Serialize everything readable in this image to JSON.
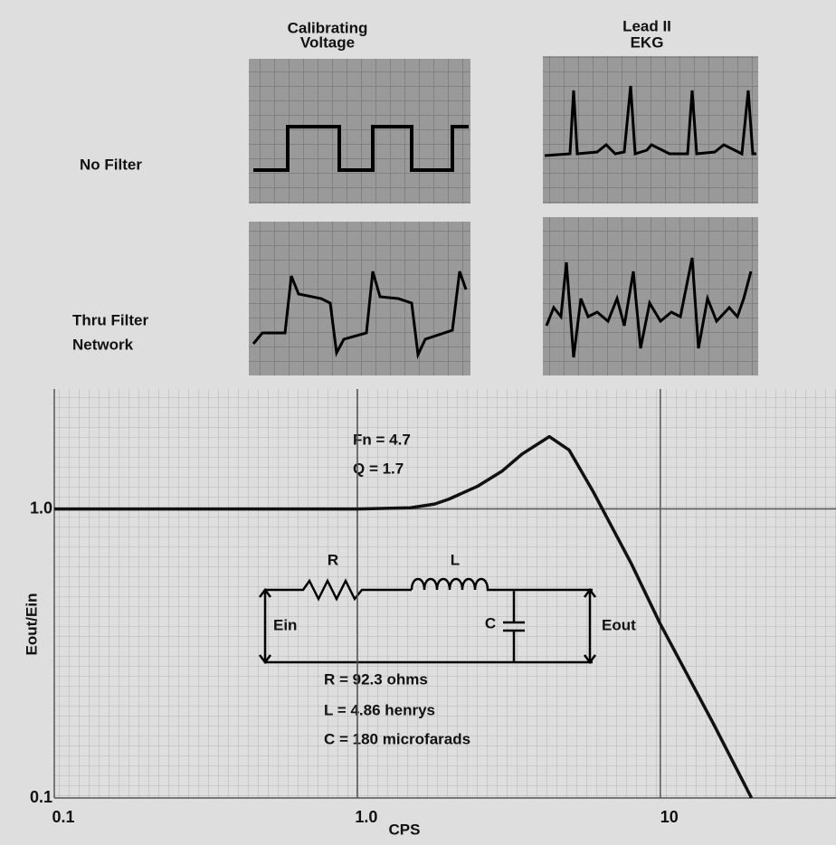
{
  "panels": {
    "columns": [
      [
        "Calibrating",
        "Voltage"
      ],
      [
        "Lead II",
        "EKG"
      ]
    ],
    "rows": [
      [
        "No Filter"
      ],
      [
        "Thru Filter",
        "Network"
      ]
    ]
  },
  "chart_data": {
    "type": "line",
    "xlabel": "CPS",
    "ylabel": "Eout/Ein",
    "x": [
      0.1,
      1,
      1.5,
      1.8,
      2,
      2.5,
      3,
      3.5,
      4.3,
      5,
      6,
      8,
      10,
      15,
      20
    ],
    "values": [
      1,
      1,
      1.01,
      1.04,
      1.08,
      1.2,
      1.35,
      1.55,
      1.78,
      1.6,
      1.15,
      0.65,
      0.4,
      0.18,
      0.1
    ],
    "color": "#111111",
    "log_x": true,
    "log_y": true,
    "grid": true,
    "xlim": [
      0.1,
      38
    ],
    "ylim": [
      0.1,
      2.6
    ],
    "xticks": [
      0.1,
      {
        "value": 1,
        "label": "1.0"
      },
      10
    ],
    "yticks": [
      0.1,
      {
        "value": 1,
        "label": "1.0"
      }
    ],
    "annotations": [
      "Fn = 4.7",
      "Q = 1.7"
    ],
    "circuit": {
      "labels": [
        "R",
        "L",
        "C",
        "Ein",
        "Eout"
      ],
      "values": [
        "R = 92.3 ohms",
        "L = 4.86 henrys",
        "C = 180 microfarads"
      ]
    }
  }
}
